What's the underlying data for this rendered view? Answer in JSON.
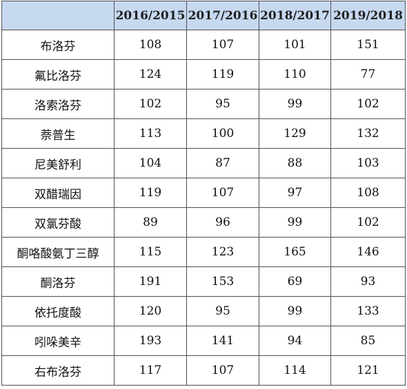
{
  "table": {
    "columns": [
      "",
      "2016/2015",
      "2017/2016",
      "2018/2017",
      "2019/2018"
    ],
    "rows": [
      {
        "name": "布洛芬",
        "values": [
          "108",
          "107",
          "101",
          "151"
        ]
      },
      {
        "name": "氟比洛芬",
        "values": [
          "124",
          "119",
          "110",
          "77"
        ]
      },
      {
        "name": "洛索洛芬",
        "values": [
          "102",
          "95",
          "99",
          "102"
        ]
      },
      {
        "name": "萘普生",
        "values": [
          "113",
          "100",
          "129",
          "132"
        ]
      },
      {
        "name": "尼美舒利",
        "values": [
          "104",
          "87",
          "88",
          "103"
        ]
      },
      {
        "name": "双醋瑞因",
        "values": [
          "119",
          "107",
          "97",
          "108"
        ]
      },
      {
        "name": "双氯芬酸",
        "values": [
          "89",
          "96",
          "99",
          "102"
        ]
      },
      {
        "name": "酮咯酸氨丁三醇",
        "values": [
          "115",
          "123",
          "165",
          "146"
        ]
      },
      {
        "name": "酮洛芬",
        "values": [
          "191",
          "153",
          "69",
          "93"
        ]
      },
      {
        "name": "依托度酸",
        "values": [
          "120",
          "95",
          "99",
          "133"
        ]
      },
      {
        "name": "吲哚美辛",
        "values": [
          "193",
          "141",
          "94",
          "85"
        ]
      },
      {
        "name": "右布洛芬",
        "values": [
          "117",
          "107",
          "114",
          "121"
        ]
      }
    ]
  },
  "colors": {
    "header_background": "#c7d9f1",
    "border": "#4f4f4f",
    "text": "#111111"
  }
}
